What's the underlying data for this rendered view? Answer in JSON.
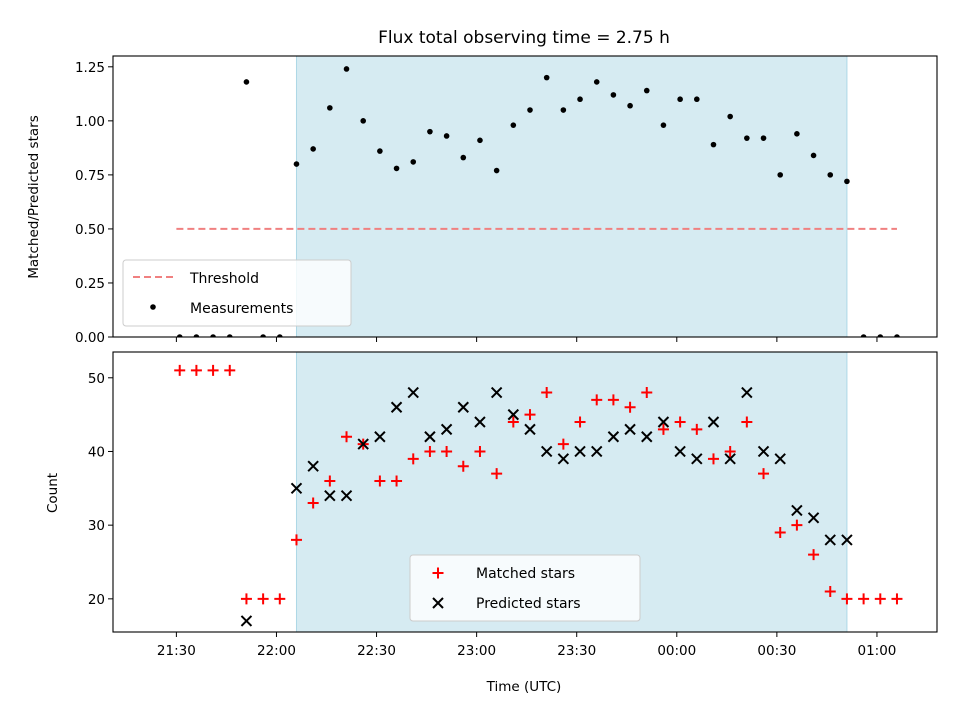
{
  "chart_data": [
    {
      "type": "scatter",
      "title": "Flux total observing time = 2.75 h",
      "xlabel": "",
      "ylabel": "Matched/Predicted stars",
      "ylim": [
        0,
        1.3
      ],
      "yticks": [
        "0.00",
        "0.25",
        "0.50",
        "0.75",
        "1.00",
        "1.25"
      ],
      "xlim": [
        "21:11",
        "01:18"
      ],
      "shaded_interval": [
        "22:06",
        "00:51"
      ],
      "grid": false,
      "legend_position": "lower-left",
      "series": [
        {
          "name": "Threshold",
          "style": "dashed-line",
          "color": "#f08080",
          "points": [
            {
              "x": "21:30",
              "y": 0.5
            },
            {
              "x": "01:06",
              "y": 0.5
            }
          ]
        },
        {
          "name": "Measurements",
          "style": "dot",
          "color": "#000000",
          "points": [
            {
              "x": "21:31",
              "y": 0
            },
            {
              "x": "21:36",
              "y": 0
            },
            {
              "x": "21:41",
              "y": 0
            },
            {
              "x": "21:46",
              "y": 0
            },
            {
              "x": "21:51",
              "y": 1.18
            },
            {
              "x": "21:56",
              "y": 0
            },
            {
              "x": "22:01",
              "y": 0
            },
            {
              "x": "22:06",
              "y": 0.8
            },
            {
              "x": "22:11",
              "y": 0.87
            },
            {
              "x": "22:16",
              "y": 1.06
            },
            {
              "x": "22:21",
              "y": 1.24
            },
            {
              "x": "22:26",
              "y": 1.0
            },
            {
              "x": "22:31",
              "y": 0.86
            },
            {
              "x": "22:36",
              "y": 0.78
            },
            {
              "x": "22:41",
              "y": 0.81
            },
            {
              "x": "22:46",
              "y": 0.95
            },
            {
              "x": "22:51",
              "y": 0.93
            },
            {
              "x": "22:56",
              "y": 0.83
            },
            {
              "x": "23:01",
              "y": 0.91
            },
            {
              "x": "23:06",
              "y": 0.77
            },
            {
              "x": "23:11",
              "y": 0.98
            },
            {
              "x": "23:16",
              "y": 1.05
            },
            {
              "x": "23:21",
              "y": 1.2
            },
            {
              "x": "23:26",
              "y": 1.05
            },
            {
              "x": "23:31",
              "y": 1.1
            },
            {
              "x": "23:36",
              "y": 1.18
            },
            {
              "x": "23:41",
              "y": 1.12
            },
            {
              "x": "23:46",
              "y": 1.07
            },
            {
              "x": "23:51",
              "y": 1.14
            },
            {
              "x": "23:56",
              "y": 0.98
            },
            {
              "x": "00:01",
              "y": 1.1
            },
            {
              "x": "00:06",
              "y": 1.1
            },
            {
              "x": "00:11",
              "y": 0.89
            },
            {
              "x": "00:16",
              "y": 1.02
            },
            {
              "x": "00:21",
              "y": 0.92
            },
            {
              "x": "00:26",
              "y": 0.92
            },
            {
              "x": "00:31",
              "y": 0.75
            },
            {
              "x": "00:36",
              "y": 0.94
            },
            {
              "x": "00:41",
              "y": 0.84
            },
            {
              "x": "00:46",
              "y": 0.75
            },
            {
              "x": "00:51",
              "y": 0.72
            },
            {
              "x": "00:56",
              "y": 0
            },
            {
              "x": "01:01",
              "y": 0
            },
            {
              "x": "01:06",
              "y": 0
            }
          ]
        }
      ]
    },
    {
      "type": "scatter",
      "title": "",
      "xlabel": "Time (UTC)",
      "ylabel": "Count",
      "ylim": [
        15.5,
        53.5
      ],
      "yticks": [
        "20",
        "30",
        "40",
        "50"
      ],
      "xlim": [
        "21:11",
        "01:18"
      ],
      "xticks": [
        "21:30",
        "22:00",
        "22:30",
        "23:00",
        "23:30",
        "00:00",
        "00:30",
        "01:00"
      ],
      "shaded_interval": [
        "22:06",
        "00:51"
      ],
      "grid": false,
      "legend_position": "lower-center",
      "series": [
        {
          "name": "Matched stars",
          "marker": "plus",
          "color": "#ff0000",
          "points": [
            {
              "x": "21:31",
              "y": 51
            },
            {
              "x": "21:36",
              "y": 51
            },
            {
              "x": "21:41",
              "y": 51
            },
            {
              "x": "21:46",
              "y": 51
            },
            {
              "x": "21:51",
              "y": 20
            },
            {
              "x": "21:56",
              "y": 20
            },
            {
              "x": "22:01",
              "y": 20
            },
            {
              "x": "22:06",
              "y": 28
            },
            {
              "x": "22:11",
              "y": 33
            },
            {
              "x": "22:16",
              "y": 36
            },
            {
              "x": "22:21",
              "y": 42
            },
            {
              "x": "22:26",
              "y": 41
            },
            {
              "x": "22:31",
              "y": 36
            },
            {
              "x": "22:36",
              "y": 36
            },
            {
              "x": "22:41",
              "y": 39
            },
            {
              "x": "22:46",
              "y": 40
            },
            {
              "x": "22:51",
              "y": 40
            },
            {
              "x": "22:56",
              "y": 38
            },
            {
              "x": "23:01",
              "y": 40
            },
            {
              "x": "23:06",
              "y": 37
            },
            {
              "x": "23:11",
              "y": 44
            },
            {
              "x": "23:16",
              "y": 45
            },
            {
              "x": "23:21",
              "y": 48
            },
            {
              "x": "23:26",
              "y": 41
            },
            {
              "x": "23:31",
              "y": 44
            },
            {
              "x": "23:36",
              "y": 47
            },
            {
              "x": "23:41",
              "y": 47
            },
            {
              "x": "23:46",
              "y": 46
            },
            {
              "x": "23:51",
              "y": 48
            },
            {
              "x": "23:56",
              "y": 43
            },
            {
              "x": "00:01",
              "y": 44
            },
            {
              "x": "00:06",
              "y": 43
            },
            {
              "x": "00:11",
              "y": 39
            },
            {
              "x": "00:16",
              "y": 40
            },
            {
              "x": "00:21",
              "y": 44
            },
            {
              "x": "00:26",
              "y": 37
            },
            {
              "x": "00:31",
              "y": 29
            },
            {
              "x": "00:36",
              "y": 30
            },
            {
              "x": "00:41",
              "y": 26
            },
            {
              "x": "00:46",
              "y": 21
            },
            {
              "x": "00:51",
              "y": 20
            },
            {
              "x": "00:56",
              "y": 20
            },
            {
              "x": "01:01",
              "y": 20
            },
            {
              "x": "01:06",
              "y": 20
            }
          ]
        },
        {
          "name": "Predicted stars",
          "marker": "x",
          "color": "#000000",
          "points": [
            {
              "x": "21:51",
              "y": 17
            },
            {
              "x": "22:06",
              "y": 35
            },
            {
              "x": "22:11",
              "y": 38
            },
            {
              "x": "22:16",
              "y": 34
            },
            {
              "x": "22:21",
              "y": 34
            },
            {
              "x": "22:26",
              "y": 41
            },
            {
              "x": "22:31",
              "y": 42
            },
            {
              "x": "22:36",
              "y": 46
            },
            {
              "x": "22:41",
              "y": 48
            },
            {
              "x": "22:46",
              "y": 42
            },
            {
              "x": "22:51",
              "y": 43
            },
            {
              "x": "22:56",
              "y": 46
            },
            {
              "x": "23:01",
              "y": 44
            },
            {
              "x": "23:06",
              "y": 48
            },
            {
              "x": "23:11",
              "y": 45
            },
            {
              "x": "23:16",
              "y": 43
            },
            {
              "x": "23:21",
              "y": 40
            },
            {
              "x": "23:26",
              "y": 39
            },
            {
              "x": "23:31",
              "y": 40
            },
            {
              "x": "23:36",
              "y": 40
            },
            {
              "x": "23:41",
              "y": 42
            },
            {
              "x": "23:46",
              "y": 43
            },
            {
              "x": "23:51",
              "y": 42
            },
            {
              "x": "23:56",
              "y": 44
            },
            {
              "x": "00:01",
              "y": 40
            },
            {
              "x": "00:06",
              "y": 39
            },
            {
              "x": "00:11",
              "y": 44
            },
            {
              "x": "00:16",
              "y": 39
            },
            {
              "x": "00:21",
              "y": 48
            },
            {
              "x": "00:26",
              "y": 40
            },
            {
              "x": "00:31",
              "y": 39
            },
            {
              "x": "00:36",
              "y": 32
            },
            {
              "x": "00:41",
              "y": 31
            },
            {
              "x": "00:46",
              "y": 28
            },
            {
              "x": "00:51",
              "y": 28
            }
          ]
        }
      ]
    }
  ]
}
